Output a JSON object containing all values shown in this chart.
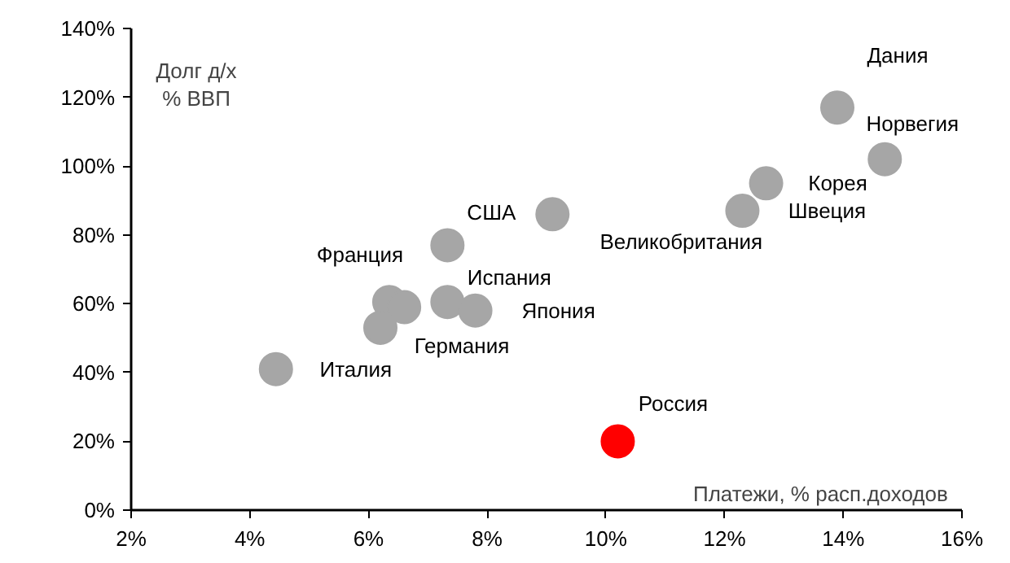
{
  "chart_data": {
    "type": "scatter",
    "xlabel": "Платежи,  % расп.доходов",
    "ylabel": "Долг д/х\n% ВВП",
    "x": [
      4.44,
      7.33,
      9.1,
      12.3,
      12.7,
      13.9,
      14.7,
      6.35,
      6.6,
      6.2,
      7.33,
      7.8,
      10.2
    ],
    "values": [
      41,
      77,
      86,
      87,
      95,
      117,
      102,
      60.5,
      59,
      53,
      60.5,
      58,
      20
    ],
    "colors": [
      "#a6a6a6",
      "#a6a6a6",
      "#a6a6a6",
      "#a6a6a6",
      "#a6a6a6",
      "#a6a6a6",
      "#a6a6a6",
      "#a6a6a6",
      "#a6a6a6",
      "#a6a6a6",
      "#a6a6a6",
      "#a6a6a6",
      "#ff0000"
    ],
    "marker": "circle",
    "value_labels": [
      "Италия",
      "США",
      "Великобритания",
      "Швеция",
      "Корея",
      "Дания",
      "Норвегия",
      "Франция",
      null,
      "Германия",
      "Испания",
      "Япония",
      "Россия"
    ],
    "xlim": [
      2,
      16
    ],
    "ylim": [
      0,
      140
    ],
    "xticks": [
      {
        "value": 2,
        "label": "2%"
      },
      {
        "value": 4,
        "label": "4%"
      },
      {
        "value": 6,
        "label": "6%"
      },
      {
        "value": 8,
        "label": "8%"
      },
      {
        "value": 10,
        "label": "10%"
      },
      {
        "value": 12,
        "label": "12%"
      },
      {
        "value": 14,
        "label": "14%"
      },
      {
        "value": 16,
        "label": "16%"
      }
    ],
    "yticks": [
      {
        "value": 0,
        "label": "0%"
      },
      {
        "value": 20,
        "label": "20%"
      },
      {
        "value": 40,
        "label": "40%"
      },
      {
        "value": 60,
        "label": "60%"
      },
      {
        "value": 80,
        "label": "80%"
      },
      {
        "value": 100,
        "label": "100%"
      },
      {
        "value": 120,
        "label": "120%"
      },
      {
        "value": 140,
        "label": "140%"
      }
    ],
    "grid": false
  }
}
